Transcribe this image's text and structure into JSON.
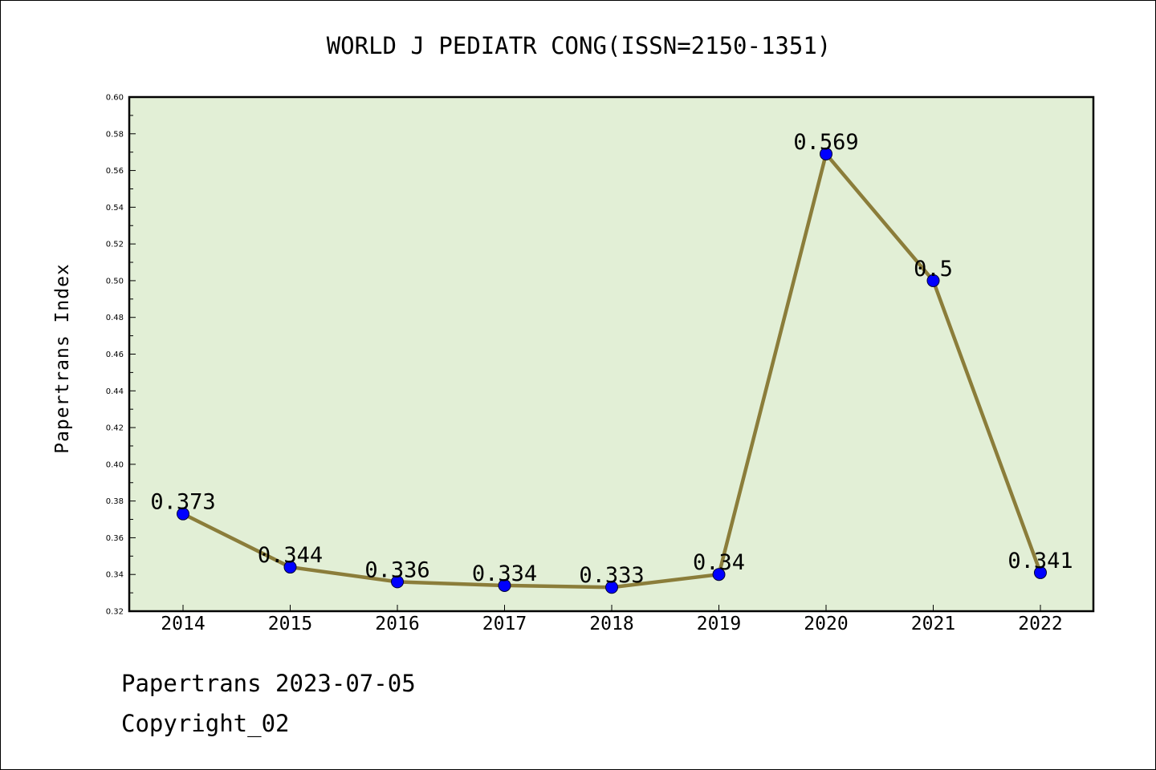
{
  "chart_data": {
    "type": "line",
    "title": "WORLD J PEDIATR CONG(ISSN=2150-1351)",
    "xlabel": "",
    "ylabel": "Papertrans Index",
    "categories": [
      "2014",
      "2015",
      "2016",
      "2017",
      "2018",
      "2019",
      "2020",
      "2021",
      "2022"
    ],
    "values": [
      0.373,
      0.344,
      0.336,
      0.334,
      0.333,
      0.34,
      0.569,
      0.5,
      0.341
    ],
    "data_labels": [
      "0.373",
      "0.344",
      "0.336",
      "0.334",
      "0.333",
      "0.34",
      "0.569",
      "0.5",
      "0.341"
    ],
    "ylim": [
      0.32,
      0.6
    ],
    "yticks": [
      "0.32",
      "0.34",
      "0.36",
      "0.38",
      "0.40",
      "0.42",
      "0.44",
      "0.46",
      "0.48",
      "0.50",
      "0.52",
      "0.54",
      "0.56",
      "0.58",
      "0.60"
    ],
    "grid": false,
    "legend": "none",
    "colors": {
      "line": "#8b7d3a",
      "marker": "#0000ff",
      "plot_background": "#e2efd6",
      "axis": "#000000"
    }
  },
  "footer": {
    "date_line": "Papertrans 2023-07-05",
    "copyright_line": "Copyright_02"
  }
}
